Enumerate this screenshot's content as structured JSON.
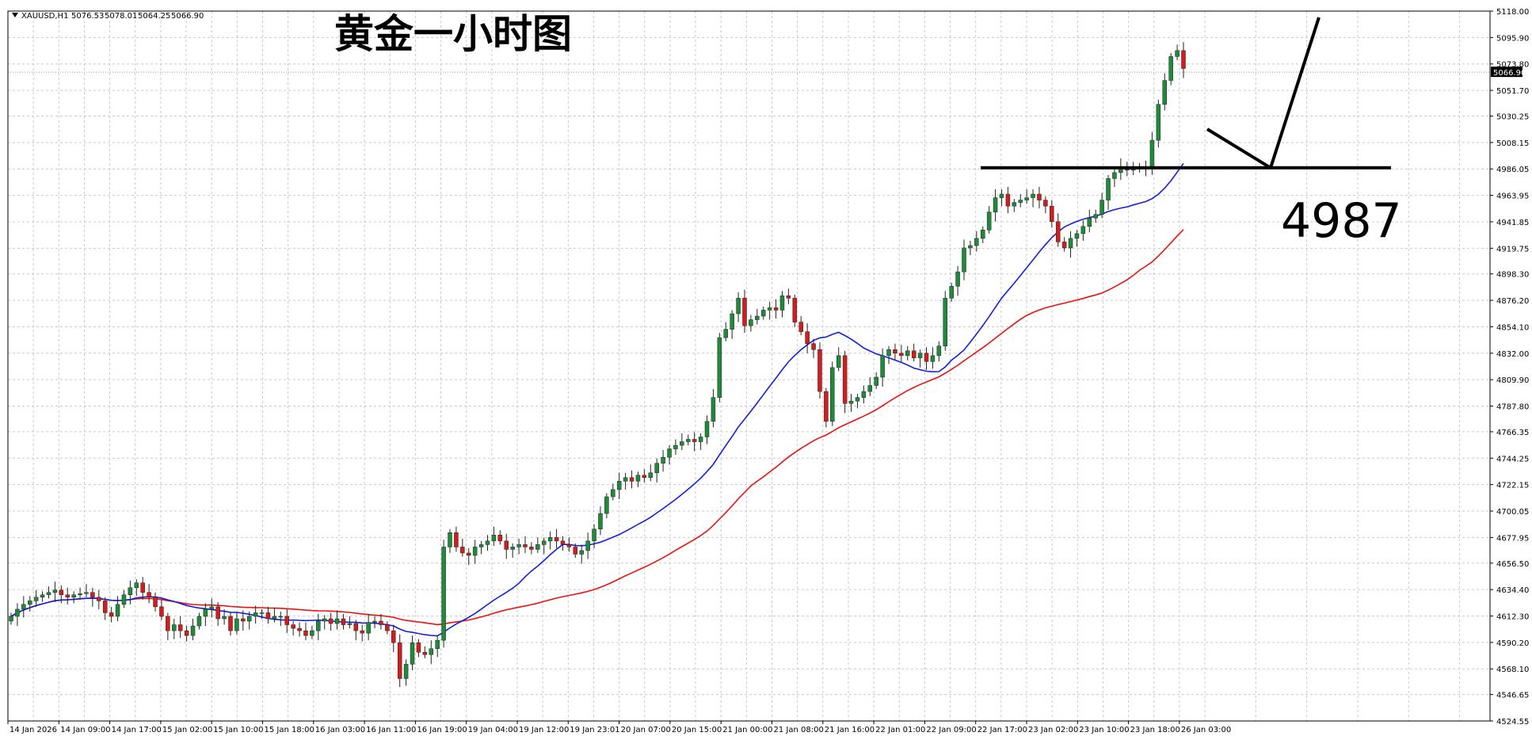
{
  "header": {
    "symbol": "XAUUSD,H1",
    "open": "5076.53",
    "high": "5078.01",
    "low": "5064.25",
    "close": "5066.90"
  },
  "annotation": {
    "title": "黄金一小时图",
    "level_label": "4987"
  },
  "current_price_label": "5066.90",
  "colors": {
    "up_candle": "#1e8a3a",
    "down_candle": "#d11d1d",
    "ma_fast": "#1020e0",
    "ma_slow": "#ee1111",
    "grid": "#c9c9c9",
    "annotation": "#000000"
  },
  "chart_data": {
    "type": "candlestick",
    "timeframe": "H1",
    "ylim": [
      4524.55,
      5118.0
    ],
    "y_ticks": [
      "5118.00",
      "5095.90",
      "5073.80",
      "5051.70",
      "5030.25",
      "5008.15",
      "4986.05",
      "4963.95",
      "4941.85",
      "4919.75",
      "4898.30",
      "4876.20",
      "4854.10",
      "4832.00",
      "4809.90",
      "4787.80",
      "4766.35",
      "4744.25",
      "4722.15",
      "4700.05",
      "4677.95",
      "4656.50",
      "4634.40",
      "4612.30",
      "4590.20",
      "4568.10",
      "4546.65",
      "4524.55"
    ],
    "x_labels": [
      "14 Jan 2026",
      "14 Jan 09:00",
      "14 Jan 17:00",
      "15 Jan 02:00",
      "15 Jan 10:00",
      "15 Jan 18:00",
      "16 Jan 03:00",
      "16 Jan 11:00",
      "16 Jan 19:00",
      "19 Jan 04:00",
      "19 Jan 12:00",
      "19 Jan 23:01",
      "20 Jan 07:00",
      "20 Jan 15:00",
      "21 Jan 00:00",
      "21 Jan 08:00",
      "21 Jan 16:00",
      "22 Jan 01:00",
      "22 Jan 09:00",
      "22 Jan 17:00",
      "23 Jan 02:00",
      "23 Jan 10:00",
      "23 Jan 18:00",
      "26 Jan 03:00"
    ],
    "horizontal_level": 4987,
    "close_series": [
      4612,
      4618,
      4622,
      4625,
      4628,
      4630,
      4632,
      4634,
      4630,
      4628,
      4630,
      4631,
      4632,
      4628,
      4625,
      4615,
      4612,
      4622,
      4630,
      4636,
      4640,
      4632,
      4628,
      4620,
      4612,
      4600,
      4605,
      4600,
      4596,
      4604,
      4612,
      4618,
      4620,
      4610,
      4612,
      4600,
      4610,
      4608,
      4612,
      4615,
      4615,
      4610,
      4612,
      4612,
      4605,
      4602,
      4600,
      4596,
      4600,
      4608,
      4610,
      4606,
      4610,
      4605,
      4606,
      4600,
      4598,
      4607,
      4608,
      4605,
      4600,
      4590,
      4560,
      4572,
      4590,
      4582,
      4580,
      4585,
      4592,
      4670,
      4682,
      4670,
      4665,
      4663,
      4670,
      4672,
      4675,
      4680,
      4675,
      4668,
      4670,
      4672,
      4670,
      4668,
      4672,
      4675,
      4678,
      4675,
      4672,
      4670,
      4664,
      4667,
      4675,
      4685,
      4698,
      4712,
      4718,
      4725,
      4728,
      4725,
      4730,
      4728,
      4732,
      4740,
      4745,
      4752,
      4755,
      4758,
      4760,
      4758,
      4762,
      4775,
      4795,
      4845,
      4852,
      4865,
      4878,
      4855,
      4860,
      4863,
      4868,
      4870,
      4868,
      4880,
      4878,
      4858,
      4850,
      4840,
      4835,
      4800,
      4775,
      4820,
      4830,
      4790,
      4792,
      4795,
      4800,
      4805,
      4812,
      4830,
      4835,
      4832,
      4830,
      4834,
      4828,
      4832,
      4825,
      4830,
      4838,
      4878,
      4888,
      4900,
      4920,
      4922,
      4928,
      4935,
      4950,
      4962,
      4965,
      4955,
      4958,
      4960,
      4962,
      4965,
      4960,
      4955,
      4942,
      4925,
      4920,
      4928,
      4932,
      4938,
      4945,
      4948,
      4960,
      4978,
      4983,
      4988,
      4985,
      4986,
      4988,
      4988,
      5010,
      5040,
      5060,
      5080,
      5085,
      5070
    ],
    "ma_fast_start": 4596,
    "ma_fast_end": 4986,
    "ma_slow_start": 4573,
    "ma_slow_end": 4907,
    "series": [
      {
        "name": "MA fast",
        "values_start": 4596,
        "values_end": 4986
      },
      {
        "name": "MA slow",
        "values_start": 4573,
        "values_end": 4907
      }
    ]
  }
}
